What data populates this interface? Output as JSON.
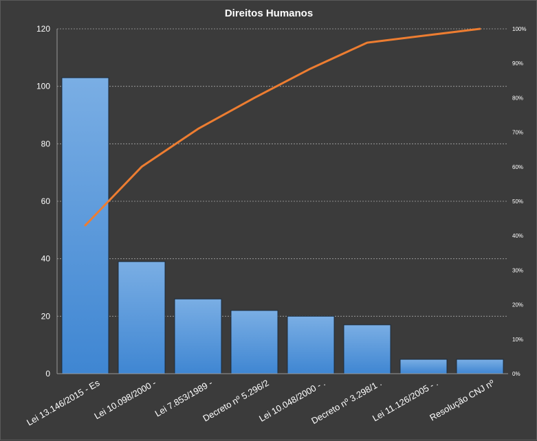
{
  "chart_data": {
    "type": "bar",
    "title": "Direitos  Humanos",
    "categories": [
      "Lei 13.146/2015 - Es",
      "Lei 10.098/2000 -",
      "Lei 7.853/1989 -",
      "Decreto nº 5.296/2",
      "Lei 10.048/2000 - .",
      "Decreto nº 3.298/1 .",
      "Lei 11.126/2005 - .",
      "Resolução CNJ nº"
    ],
    "series": [
      {
        "type": "bar",
        "values": [
          103,
          39,
          26,
          22,
          20,
          17,
          5,
          5
        ]
      },
      {
        "type": "line",
        "axis": "right",
        "values": [
          43,
          60,
          71,
          80,
          88.5,
          96,
          98,
          100
        ]
      }
    ],
    "ylim": [
      0,
      120
    ],
    "yticks": [
      "0",
      "20",
      "40",
      "60",
      "80",
      "100",
      "120"
    ],
    "y2lim": [
      0,
      100
    ],
    "y2ticks": [
      "0%",
      "10%",
      "20%",
      "30%",
      "40%",
      "50%",
      "60%",
      "70%",
      "80%",
      "90%",
      "100%"
    ],
    "grid": true,
    "colors": {
      "bar": "#4a8fd6",
      "line": "#ed7d31",
      "background": "#3b3b3b"
    }
  }
}
